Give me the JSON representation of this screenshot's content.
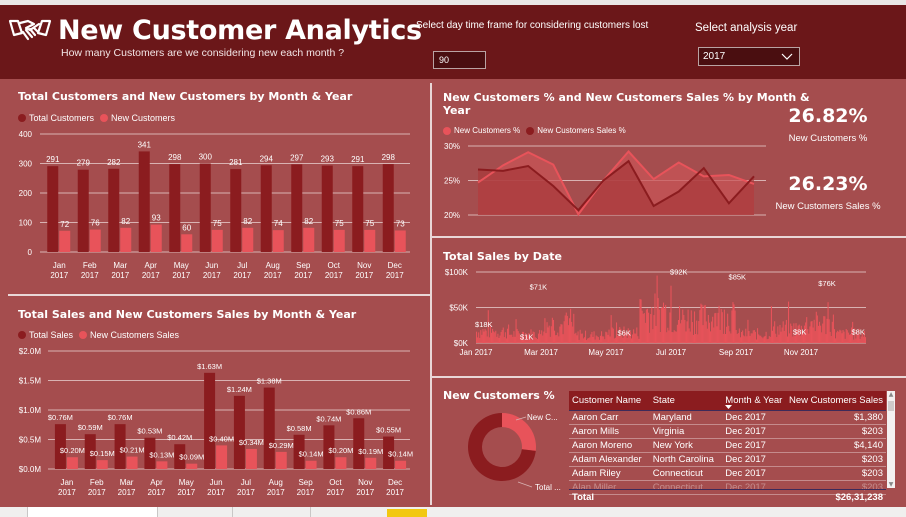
{
  "header": {
    "title": "New Customer Analytics",
    "subtitle": "How many Customers are we considering new each month ?",
    "logo_icon": "handshake-icon",
    "days_label": "Select day time frame for considering customers lost",
    "days_value": "90",
    "year_label": "Select analysis year",
    "year_value": "2017"
  },
  "colors": {
    "header_bg": "#6b1719",
    "canvas_bg": "#a54d4e",
    "dark_series": "#8b1c1f",
    "light_series": "#e8535a",
    "accent_tab": "#f2c811"
  },
  "customers_chart": {
    "title": "Total Customers and New Customers by Month & Year",
    "legend": [
      "Total Customers",
      "New Customers"
    ]
  },
  "sales_chart": {
    "title": "Total Sales and New Customers Sales by Month & Year",
    "legend": [
      "Total Sales",
      "New Customers Sales"
    ]
  },
  "pct_chart": {
    "title_line1": "New Customers % and New Customers Sales % by Month &",
    "title_line2": "Year",
    "legend": [
      "New Customers %",
      "New Customers Sales %"
    ]
  },
  "kpis": [
    {
      "value": "26.82%",
      "caption": "New Customers %"
    },
    {
      "value": "26.23%",
      "caption": "New Customers Sales %"
    }
  ],
  "daily_chart": {
    "title": "Total Sales by Date"
  },
  "donut": {
    "title": "New Customers %",
    "labels": [
      "New C...",
      "Total ..."
    ]
  },
  "table": {
    "columns": [
      "Customer Name",
      "State",
      "Month & Year",
      "New Customers Sales"
    ],
    "sort_column": "Month & Year",
    "rows": [
      [
        "Aaron Carr",
        "Maryland",
        "Dec 2017",
        "$1,380"
      ],
      [
        "Aaron Mills",
        "Virginia",
        "Dec 2017",
        "$203"
      ],
      [
        "Aaron Moreno",
        "New York",
        "Dec 2017",
        "$4,140"
      ],
      [
        "Adam Alexander",
        "North Carolina",
        "Dec 2017",
        "$203"
      ],
      [
        "Adam Riley",
        "Connecticut",
        "Dec 2017",
        "$203"
      ],
      [
        "Alan Miller",
        "Connecticut",
        "Dec 2017",
        "$203"
      ]
    ],
    "total_label": "Total",
    "total_value": "$26,31,238"
  },
  "chart_data": [
    {
      "type": "bar",
      "title": "Total Customers and New Customers by Month & Year",
      "categories": [
        "Jan 2017",
        "Feb 2017",
        "Mar 2017",
        "Apr 2017",
        "May 2017",
        "Jun 2017",
        "Jul 2017",
        "Aug 2017",
        "Sep 2017",
        "Oct 2017",
        "Nov 2017",
        "Dec 2017"
      ],
      "series": [
        {
          "name": "Total Customers",
          "values": [
            291,
            279,
            282,
            341,
            298,
            300,
            281,
            294,
            297,
            293,
            291,
            298
          ]
        },
        {
          "name": "New Customers",
          "values": [
            72,
            76,
            82,
            93,
            60,
            75,
            82,
            74,
            82,
            75,
            75,
            73
          ]
        }
      ],
      "yticks": [
        "0",
        "100",
        "200",
        "300",
        "400"
      ],
      "ylim": [
        0,
        400
      ],
      "legend": "top-left",
      "grid": true
    },
    {
      "type": "bar",
      "title": "Total Sales and New Customers Sales by Month & Year",
      "categories": [
        "Jan 2017",
        "Feb 2017",
        "Mar 2017",
        "Apr 2017",
        "May 2017",
        "Jun 2017",
        "Jul 2017",
        "Aug 2017",
        "Sep 2017",
        "Oct 2017",
        "Nov 2017",
        "Dec 2017"
      ],
      "series": [
        {
          "name": "Total Sales",
          "values": [
            0.76,
            0.59,
            0.76,
            0.53,
            0.42,
            1.63,
            1.24,
            1.38,
            0.58,
            0.74,
            0.86,
            0.55
          ],
          "labels": [
            "$0.76M",
            "$0.59M",
            "$0.76M",
            "$0.53M",
            "$0.42M",
            "$1.63M",
            "$1.24M",
            "$1.38M",
            "$0.58M",
            "$0.74M",
            "$0.86M",
            "$0.55M"
          ]
        },
        {
          "name": "New Customers Sales",
          "values": [
            0.2,
            0.15,
            0.21,
            0.13,
            0.09,
            0.4,
            0.34,
            0.29,
            0.14,
            0.2,
            0.19,
            0.14
          ],
          "labels": [
            "$0.20M",
            "$0.15M",
            "$0.21M",
            "$0.13M",
            "$0.09M",
            "$0.40M",
            "$0.34M",
            "$0.29M",
            "$0.14M",
            "$0.20M",
            "$0.19M",
            "$0.14M"
          ]
        }
      ],
      "yticks": [
        "$0.0M",
        "$0.5M",
        "$1.0M",
        "$1.5M",
        "$2.0M"
      ],
      "ylim": [
        0,
        2.0
      ],
      "yunit": "$M",
      "legend": "top-left",
      "grid": true
    },
    {
      "type": "area",
      "title": "New Customers % and New Customers Sales % by Month & Year",
      "categories": [
        "Jan 2017",
        "Feb 2017",
        "Mar 2017",
        "Apr 2017",
        "May 2017",
        "Jun 2017",
        "Jul 2017",
        "Aug 2017",
        "Sep 2017",
        "Oct 2017",
        "Nov 2017",
        "Dec 2017"
      ],
      "series": [
        {
          "name": "New Customers %",
          "values": [
            24.7,
            27.2,
            29.1,
            27.3,
            20.1,
            25.0,
            29.2,
            25.2,
            27.6,
            25.6,
            25.8,
            24.5
          ]
        },
        {
          "name": "New Customers Sales %",
          "values": [
            26.6,
            26.4,
            27.1,
            24.2,
            20.7,
            25.0,
            27.8,
            21.3,
            23.4,
            26.8,
            21.7,
            25.6
          ]
        }
      ],
      "yticks": [
        "20%",
        "25%",
        "30%"
      ],
      "ylim": [
        20,
        30
      ],
      "legend": "top-left",
      "grid": true
    },
    {
      "type": "bar",
      "title": "Total Sales by Date",
      "xticks": [
        "Jan 2017",
        "Mar 2017",
        "May 2017",
        "Jul 2017",
        "Sep 2017",
        "Nov 2017"
      ],
      "yticks": [
        "$0K",
        "$50K",
        "$100K"
      ],
      "ylim": [
        0,
        100
      ],
      "yunit": "$K",
      "annotations": [
        {
          "date": "Jan 2017",
          "label": "$18K",
          "value": 18
        },
        {
          "date": "Feb 2017",
          "label": "$1K",
          "value": 1
        },
        {
          "date": "Feb 2017",
          "label": "$71K",
          "value": 71
        },
        {
          "date": "May 2017",
          "label": "$6K",
          "value": 6
        },
        {
          "date": "Jun 2017",
          "label": "$92K",
          "value": 92
        },
        {
          "date": "Aug 2017",
          "label": "$85K",
          "value": 85
        },
        {
          "date": "Nov 2017",
          "label": "$8K",
          "value": 8
        },
        {
          "date": "Dec 2017",
          "label": "$76K",
          "value": 76
        },
        {
          "date": "Dec 2017",
          "label": "$8K",
          "value": 8
        }
      ],
      "monthly_levels_k": [
        18,
        14,
        28,
        12,
        16,
        48,
        38,
        40,
        14,
        22,
        30,
        14
      ],
      "grid": true
    },
    {
      "type": "pie",
      "title": "New Customers %",
      "categories": [
        "New Customers",
        "Total Customers"
      ],
      "values": [
        26.82,
        73.18
      ],
      "donut": true
    }
  ]
}
